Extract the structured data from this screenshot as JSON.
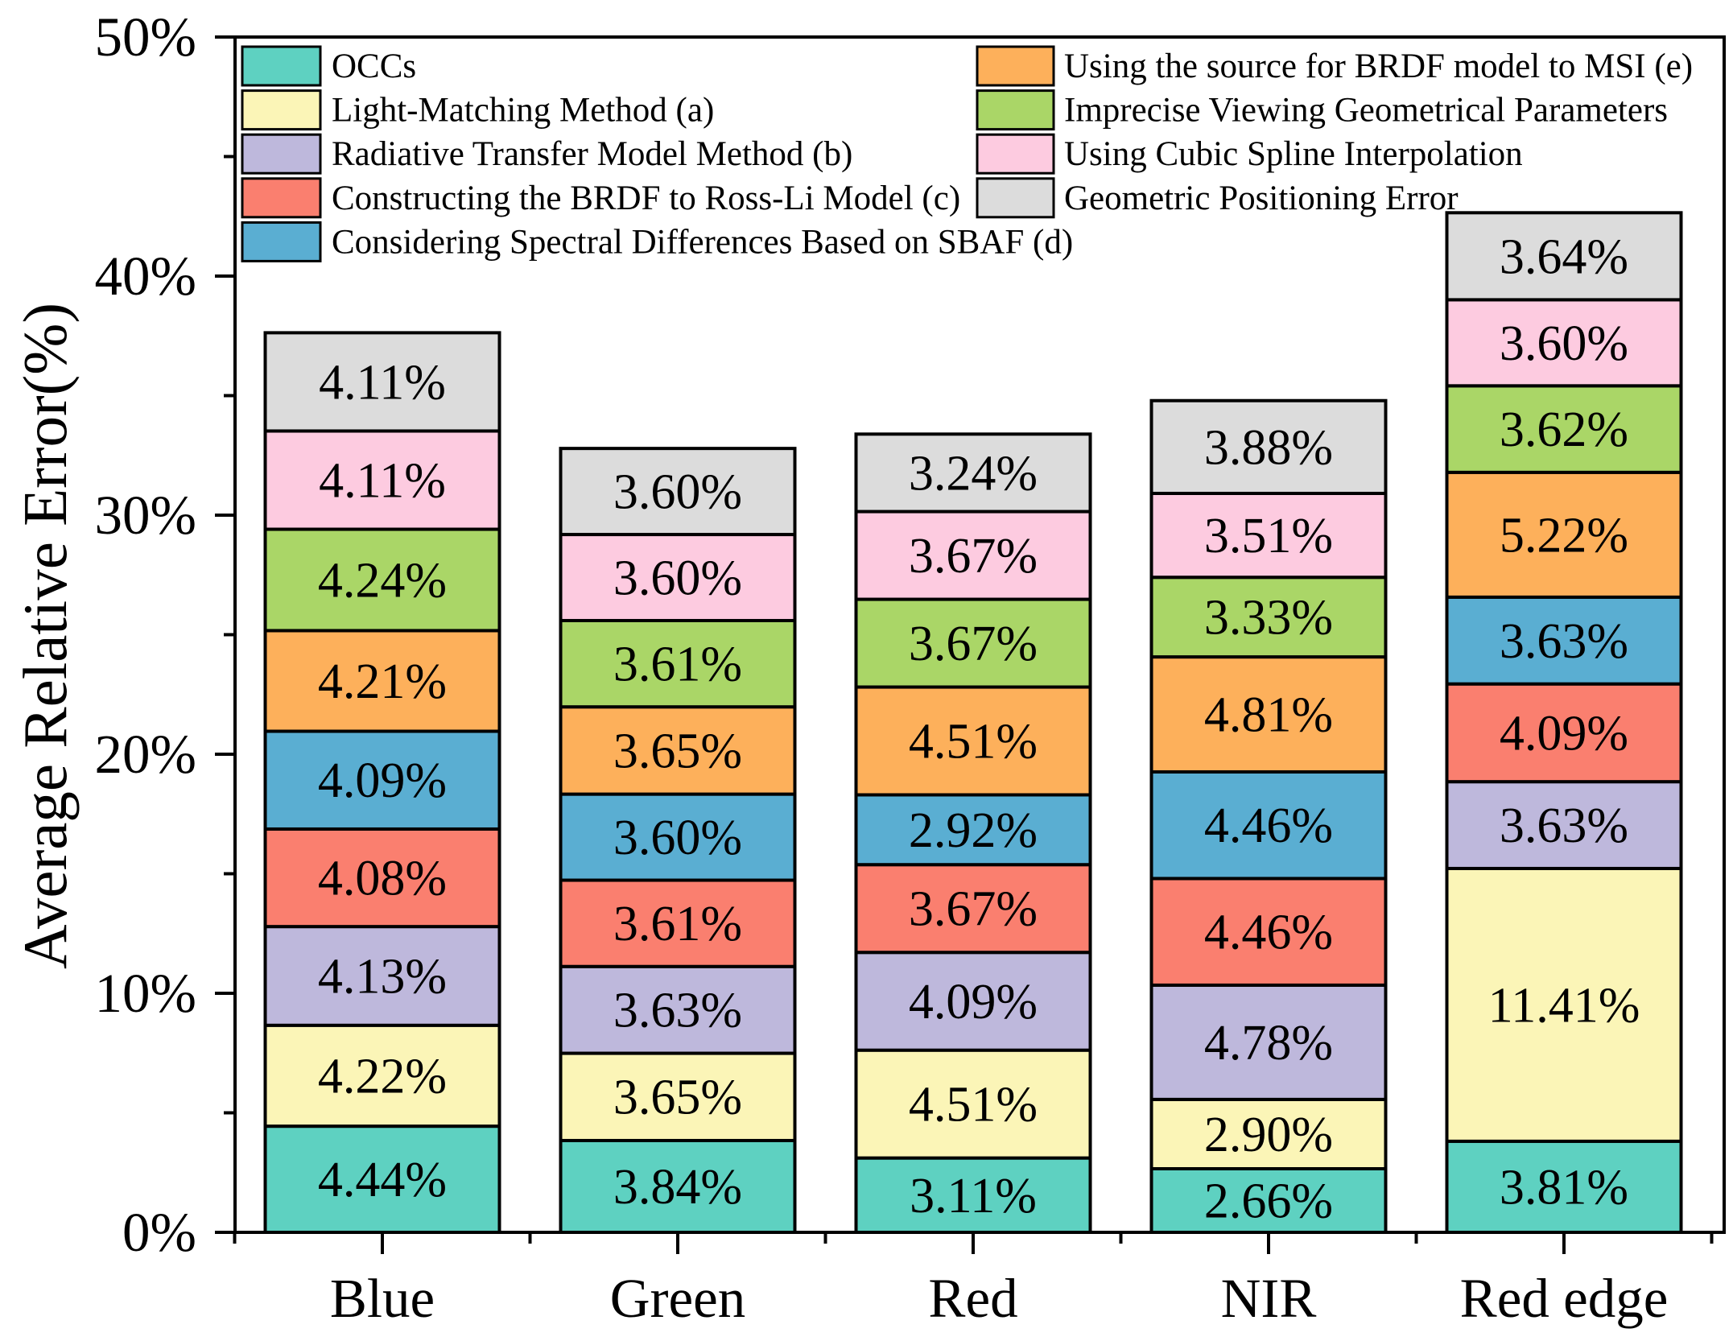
{
  "chart_data": {
    "type": "bar",
    "stacked": true,
    "ylabel": "Average Relative Error(%)",
    "ylim": [
      0,
      50
    ],
    "yticks": [
      0,
      10,
      20,
      30,
      40,
      50
    ],
    "yticklabels": [
      "0%",
      "10%",
      "20%",
      "30%",
      "40%",
      "50%"
    ],
    "grid": false,
    "legend_position": "top",
    "categories": [
      "Blue",
      "Green",
      "Red",
      "NIR",
      "Red edge"
    ],
    "series": [
      {
        "name": "OCCs",
        "color": "#5ED1C1",
        "values": [
          4.44,
          3.84,
          3.11,
          2.66,
          3.81
        ],
        "labels": [
          "4.44%",
          "3.84%",
          "3.11%",
          "2.66%",
          "3.81%"
        ]
      },
      {
        "name": "Light-Matching Method (a)",
        "color": "#FBF5B7",
        "values": [
          4.22,
          3.65,
          4.51,
          2.9,
          11.41
        ],
        "labels": [
          "4.22%",
          "3.65%",
          "4.51%",
          "2.90%",
          "11.41%"
        ]
      },
      {
        "name": "Radiative Transfer Model Method (b)",
        "color": "#BEB8DC",
        "values": [
          4.13,
          3.63,
          4.09,
          4.78,
          3.63
        ],
        "labels": [
          "4.13%",
          "3.63%",
          "4.09%",
          "4.78%",
          "3.63%"
        ]
      },
      {
        "name": "Constructing the BRDF to Ross-Li Model (c)",
        "color": "#FA7F6F",
        "values": [
          4.08,
          3.61,
          3.67,
          4.46,
          4.09
        ],
        "labels": [
          "4.08%",
          "3.61%",
          "3.67%",
          "4.46%",
          "4.09%"
        ]
      },
      {
        "name": "Considering Spectral Differences Based on SBAF (d)",
        "color": "#5AAED2",
        "values": [
          4.09,
          3.6,
          2.92,
          4.46,
          3.63
        ],
        "labels": [
          "4.09%",
          "3.60%",
          "2.92%",
          "4.46%",
          "3.63%"
        ]
      },
      {
        "name": "Using the source for BRDF model to MSI (e)",
        "color": "#FDB05B",
        "values": [
          4.21,
          3.65,
          4.51,
          4.81,
          5.22
        ],
        "labels": [
          "4.21%",
          "3.65%",
          "4.51%",
          "4.81%",
          "5.22%"
        ]
      },
      {
        "name": "Imprecise Viewing Geometrical Parameters",
        "color": "#AAD667",
        "values": [
          4.24,
          3.61,
          3.67,
          3.33,
          3.62
        ],
        "labels": [
          "4.24%",
          "3.61%",
          "3.67%",
          "3.33%",
          "3.62%"
        ]
      },
      {
        "name": "Using Cubic Spline Interpolation",
        "color": "#FDCBE0",
        "values": [
          4.11,
          3.6,
          3.67,
          3.51,
          3.6
        ],
        "labels": [
          "4.11%",
          "3.60%",
          "3.67%",
          "3.51%",
          "3.60%"
        ]
      },
      {
        "name": "Geometric Positioning Error",
        "color": "#DCDCDC",
        "values": [
          4.11,
          3.6,
          3.24,
          3.88,
          3.64
        ],
        "labels": [
          "4.11%",
          "3.60%",
          "3.24%",
          "3.88%",
          "3.64%"
        ]
      }
    ]
  }
}
